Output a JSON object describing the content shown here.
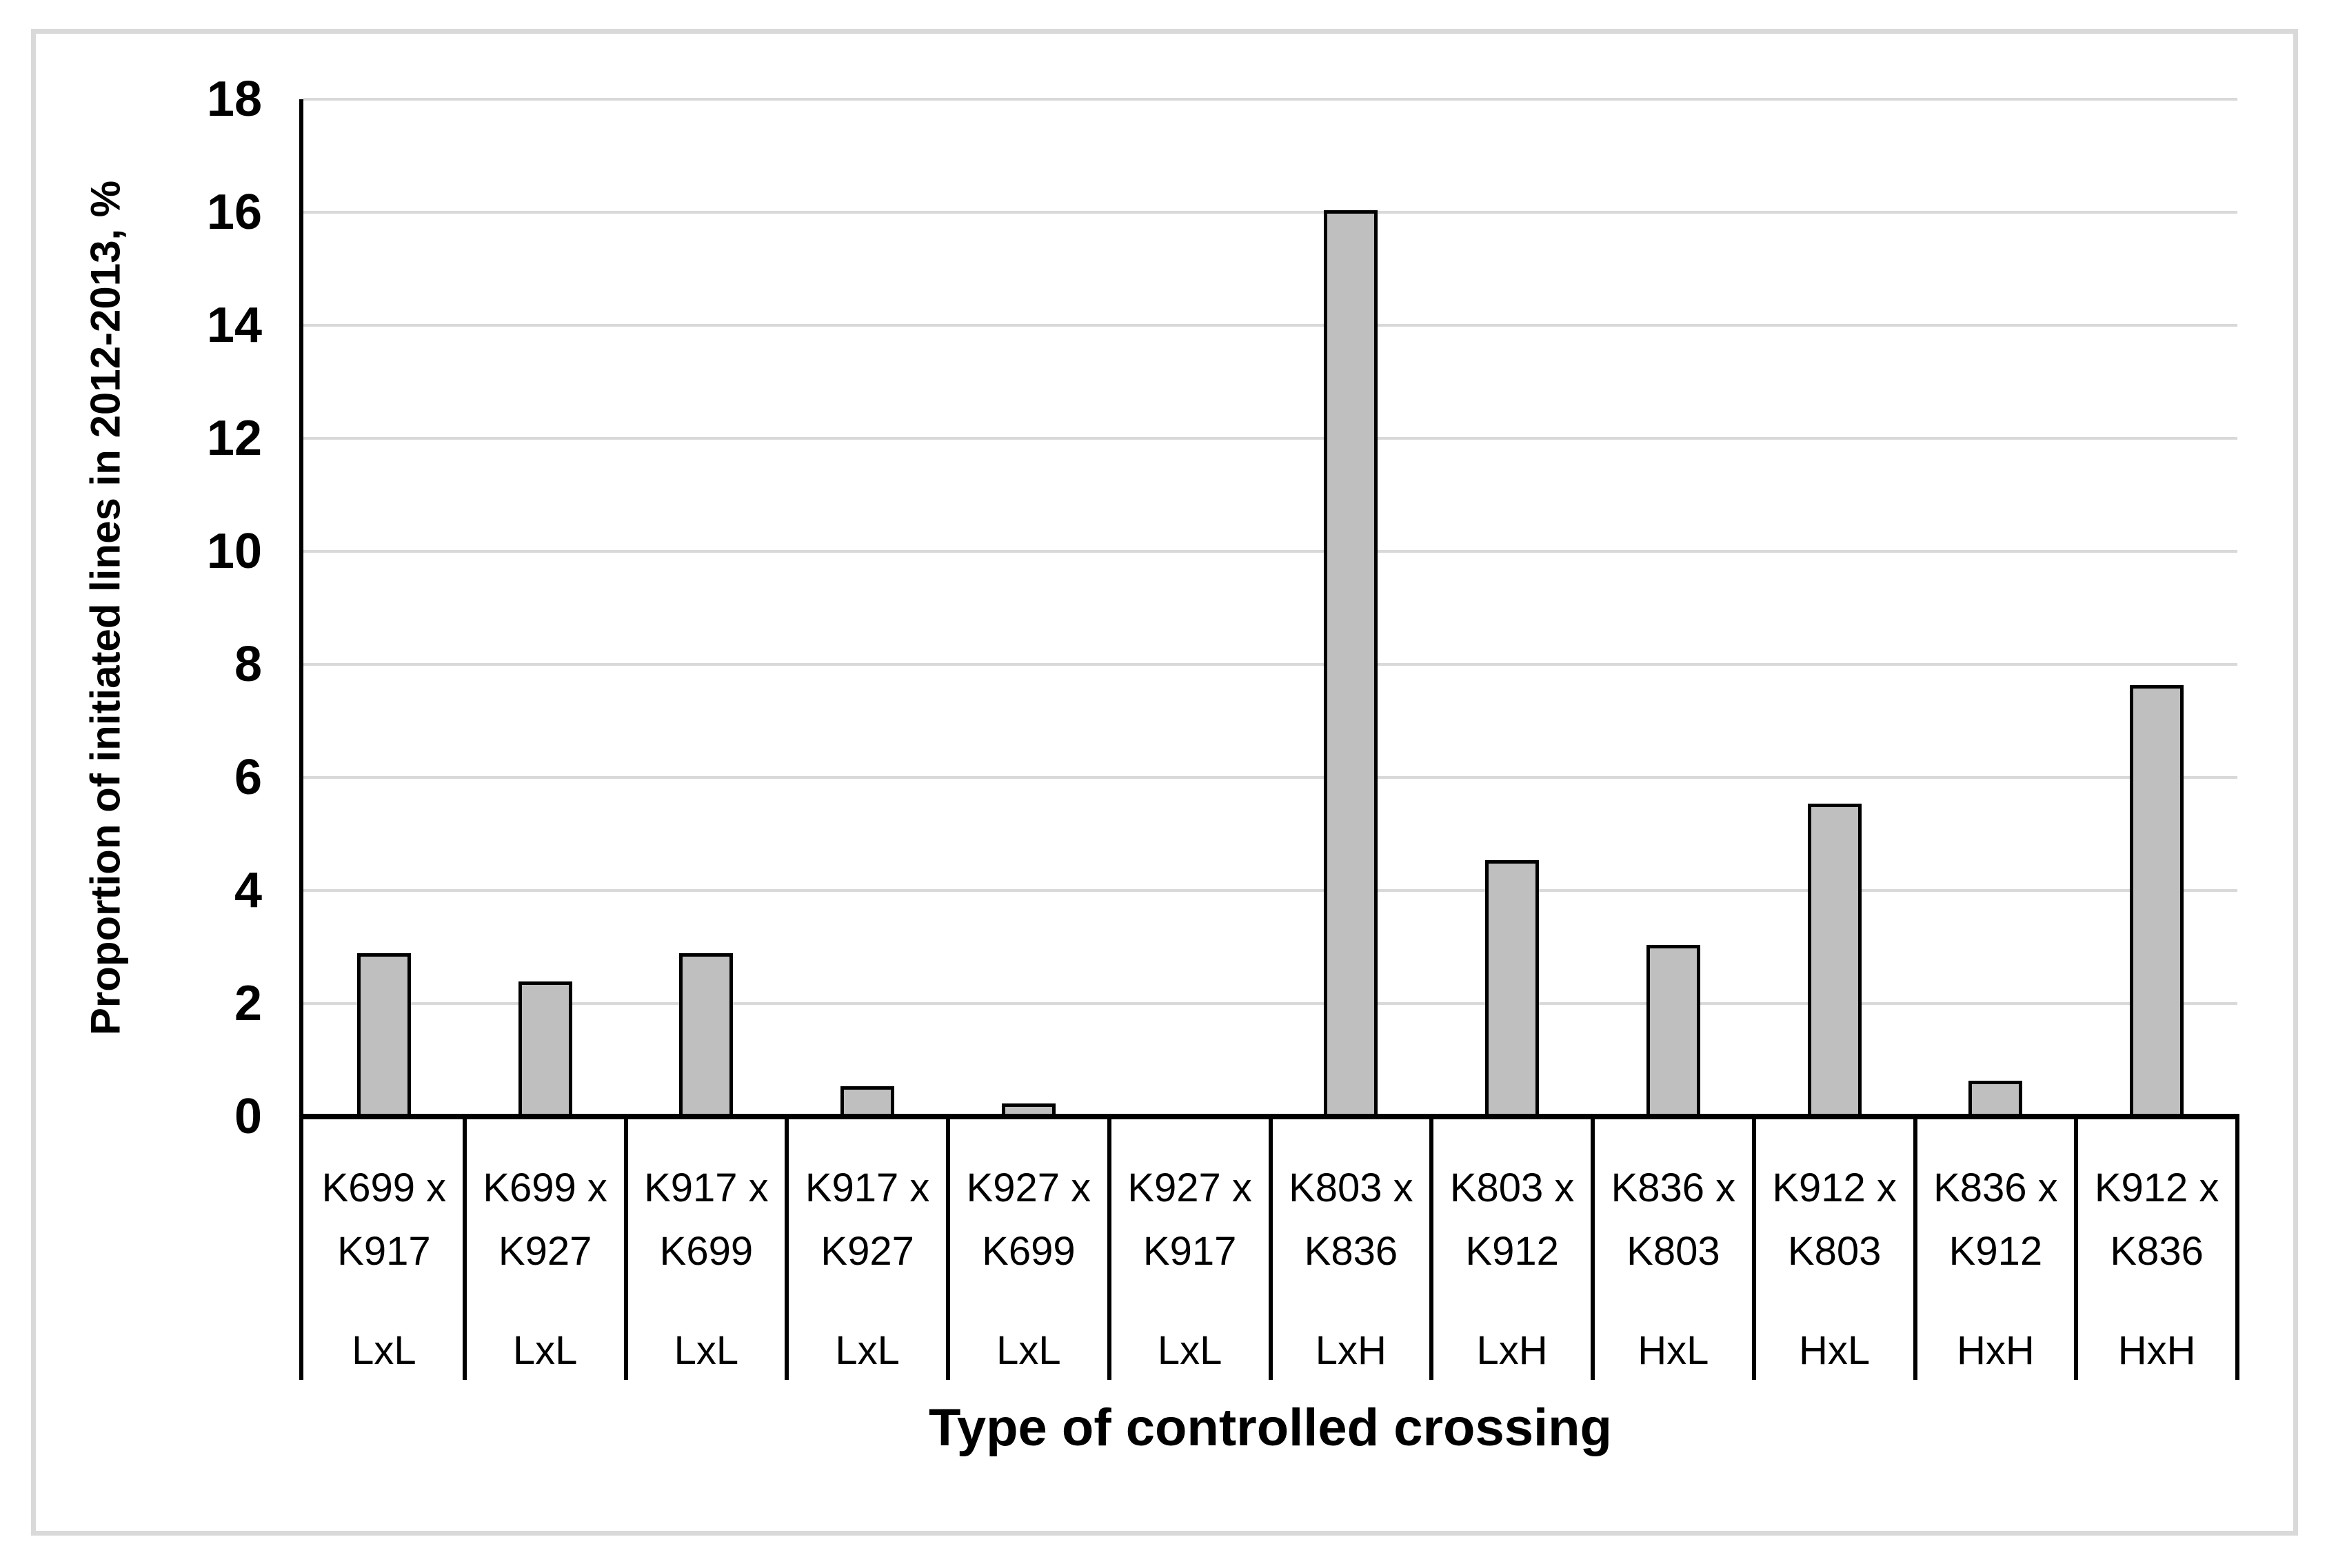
{
  "figure": {
    "background": "#ffffff",
    "outer_border_color": "#D9D9D9"
  },
  "chart_data": {
    "type": "bar",
    "title": "",
    "xlabel": "Type of controlled crossing",
    "ylabel": "Proportion of initiated lines in 2012-2013, %",
    "ylim": [
      0,
      18
    ],
    "ytick_step": 2,
    "yticks": [
      "0",
      "2",
      "4",
      "6",
      "8",
      "10",
      "12",
      "14",
      "16",
      "18"
    ],
    "grid": "horizontal",
    "gridline_color": "#D9D9D9",
    "legend_position": "none",
    "bar_fill": "#BFBFBF",
    "bar_border": "#000000",
    "categories": [
      {
        "line1": "K699 x",
        "line2": "K917",
        "type": "LxL"
      },
      {
        "line1": "K699 x",
        "line2": "K927",
        "type": "LxL"
      },
      {
        "line1": "K917 x",
        "line2": "K699",
        "type": "LxL"
      },
      {
        "line1": "K917 x",
        "line2": "K927",
        "type": "LxL"
      },
      {
        "line1": "K927 x",
        "line2": "K699",
        "type": "LxL"
      },
      {
        "line1": "K927 x",
        "line2": "K917",
        "type": "LxL"
      },
      {
        "line1": "K803 x",
        "line2": "K836",
        "type": "LxH"
      },
      {
        "line1": "K803 x",
        "line2": "K912",
        "type": "LxH"
      },
      {
        "line1": "K836 x",
        "line2": "K803",
        "type": "HxL"
      },
      {
        "line1": "K912 x",
        "line2": "K803",
        "type": "HxL"
      },
      {
        "line1": "K836 x",
        "line2": "K912",
        "type": "HxH"
      },
      {
        "line1": "K912 x",
        "line2": "K836",
        "type": "HxH"
      }
    ],
    "values": [
      2.85,
      2.35,
      2.85,
      0.5,
      0.2,
      0,
      16,
      4.5,
      3,
      5.5,
      0.6,
      7.6
    ]
  }
}
